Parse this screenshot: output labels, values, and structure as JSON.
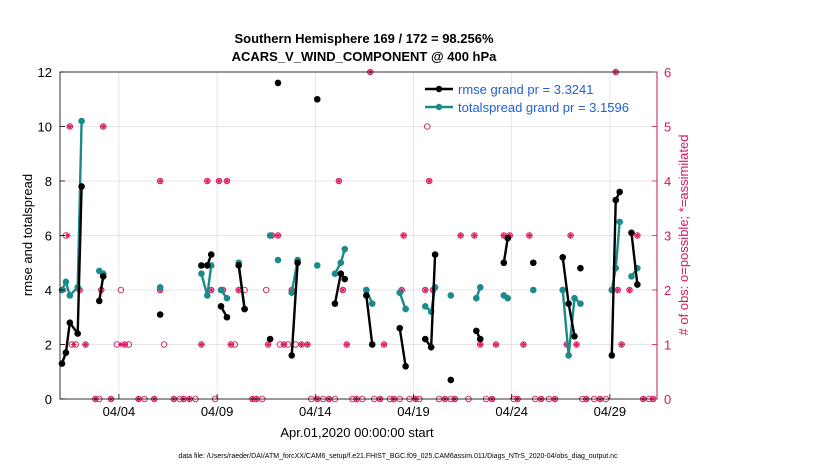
{
  "chart_data": {
    "type": "line",
    "title_line1": "Southern Hemisphere 169 / 172 = 98.256%",
    "title_line2": "ACARS_V_WIND_COMPONENT @ 400 hPa",
    "xlabel": "Apr.01,2020 00:00:00 start",
    "ylabel_left": "rmse and totalspread",
    "ylabel_right": "# of obs: o=possible; *=assimilated",
    "x_range_days": [
      1,
      31.4
    ],
    "x_ticks": [
      {
        "day": 4,
        "label": "04/04"
      },
      {
        "day": 9,
        "label": "04/09"
      },
      {
        "day": 14,
        "label": "04/14"
      },
      {
        "day": 19,
        "label": "04/19"
      },
      {
        "day": 24,
        "label": "04/24"
      },
      {
        "day": 29,
        "label": "04/29"
      }
    ],
    "ylim_left": [
      0,
      12
    ],
    "yticks_left": [
      "0",
      "2",
      "4",
      "6",
      "8",
      "10",
      "12"
    ],
    "ylim_right": [
      0,
      6
    ],
    "yticks_right": [
      "0",
      "1",
      "2",
      "3",
      "4",
      "5",
      "6"
    ],
    "grid": true,
    "legend_position": "top-right",
    "colors": {
      "rmse": "#000000",
      "spread": "#1a8a8a",
      "obs": "#d6175f",
      "legend_text": "#1f5fd6"
    },
    "series": [
      {
        "name": "rmse grand pr = 3.3241",
        "segments": [
          [
            [
              1.1,
              1.3
            ],
            [
              1.3,
              1.7
            ],
            [
              1.5,
              2.8
            ],
            [
              1.9,
              2.4
            ],
            [
              2.1,
              7.8
            ]
          ],
          [
            [
              3.0,
              3.6
            ],
            [
              3.2,
              4.5
            ]
          ],
          [
            [
              6.1,
              3.1
            ]
          ],
          [
            [
              8.2,
              4.9
            ],
            [
              8.5,
              4.9
            ],
            [
              8.7,
              5.3
            ]
          ],
          [
            [
              9.2,
              3.4
            ],
            [
              9.5,
              3.0
            ]
          ],
          [
            [
              10.1,
              4.9
            ],
            [
              10.4,
              3.3
            ]
          ],
          [
            [
              11.7,
              2.2
            ]
          ],
          [
            [
              12.1,
              11.6
            ]
          ],
          [
            [
              12.8,
              1.6
            ],
            [
              13.1,
              5.0
            ]
          ],
          [
            [
              14.1,
              11.0
            ]
          ],
          [
            [
              15.0,
              3.5
            ],
            [
              15.3,
              4.6
            ],
            [
              15.5,
              4.4
            ]
          ],
          [
            [
              16.6,
              3.8
            ],
            [
              16.9,
              2.0
            ]
          ],
          [
            [
              18.3,
              2.6
            ],
            [
              18.6,
              1.2
            ]
          ],
          [
            [
              19.6,
              2.2
            ],
            [
              19.9,
              1.9
            ],
            [
              20.1,
              5.3
            ]
          ],
          [
            [
              20.9,
              0.7
            ]
          ],
          [
            [
              22.2,
              2.5
            ],
            [
              22.4,
              2.2
            ]
          ],
          [
            [
              23.6,
              5.0
            ],
            [
              23.8,
              5.9
            ]
          ],
          [
            [
              25.1,
              5.0
            ]
          ],
          [
            [
              26.6,
              5.2
            ],
            [
              26.9,
              3.5
            ],
            [
              27.2,
              2.3
            ]
          ],
          [
            [
              27.5,
              4.8
            ]
          ],
          [
            [
              29.1,
              1.6
            ],
            [
              29.3,
              7.3
            ],
            [
              29.5,
              7.6
            ]
          ],
          [
            [
              30.1,
              6.1
            ],
            [
              30.4,
              4.2
            ]
          ]
        ]
      },
      {
        "name": "totalspread grand pr = 3.1596",
        "segments": [
          [
            [
              1.1,
              4.0
            ],
            [
              1.3,
              4.3
            ],
            [
              1.5,
              3.8
            ],
            [
              1.9,
              4.1
            ],
            [
              2.1,
              10.2
            ]
          ],
          [
            [
              3.0,
              4.7
            ],
            [
              3.2,
              4.6
            ]
          ],
          [
            [
              6.1,
              4.1
            ]
          ],
          [
            [
              8.2,
              4.6
            ],
            [
              8.5,
              3.8
            ],
            [
              8.7,
              4.9
            ]
          ],
          [
            [
              9.2,
              4.0
            ],
            [
              9.5,
              3.7
            ]
          ],
          [
            [
              10.1,
              5.0
            ],
            [
              10.4,
              3.3
            ]
          ],
          [
            [
              11.7,
              6.0
            ]
          ],
          [
            [
              12.1,
              5.1
            ]
          ],
          [
            [
              12.8,
              3.9
            ],
            [
              13.1,
              5.1
            ]
          ],
          [
            [
              14.1,
              4.9
            ]
          ],
          [
            [
              15.0,
              4.6
            ],
            [
              15.3,
              5.0
            ],
            [
              15.5,
              5.5
            ]
          ],
          [
            [
              16.6,
              4.0
            ],
            [
              16.9,
              3.5
            ]
          ],
          [
            [
              18.3,
              3.9
            ],
            [
              18.6,
              3.3
            ]
          ],
          [
            [
              19.6,
              3.4
            ],
            [
              19.9,
              3.2
            ],
            [
              20.1,
              4.1
            ]
          ],
          [
            [
              20.9,
              3.8
            ]
          ],
          [
            [
              22.2,
              3.7
            ],
            [
              22.4,
              4.1
            ]
          ],
          [
            [
              23.6,
              3.8
            ],
            [
              23.8,
              3.7
            ]
          ],
          [
            [
              25.1,
              4.0
            ]
          ],
          [
            [
              26.6,
              4.0
            ],
            [
              26.9,
              1.6
            ],
            [
              27.2,
              3.7
            ],
            [
              27.5,
              3.5
            ]
          ],
          [
            [
              29.1,
              4.0
            ],
            [
              29.3,
              4.8
            ],
            [
              29.5,
              6.5
            ]
          ],
          [
            [
              30.1,
              4.5
            ],
            [
              30.4,
              4.8
            ]
          ]
        ]
      }
    ],
    "obs_possible": [
      [
        1.1,
        2
      ],
      [
        1.3,
        3
      ],
      [
        1.5,
        5
      ],
      [
        1.6,
        1
      ],
      [
        1.8,
        1
      ],
      [
        2.0,
        2
      ],
      [
        2.3,
        1
      ],
      [
        2.8,
        0
      ],
      [
        3.0,
        0
      ],
      [
        3.1,
        2
      ],
      [
        3.2,
        5
      ],
      [
        3.6,
        0
      ],
      [
        3.9,
        1
      ],
      [
        4.1,
        2
      ],
      [
        4.3,
        1
      ],
      [
        4.5,
        1
      ],
      [
        5.0,
        0
      ],
      [
        5.3,
        0
      ],
      [
        5.8,
        0
      ],
      [
        6.1,
        4
      ],
      [
        6.1,
        2
      ],
      [
        6.3,
        1
      ],
      [
        6.8,
        0
      ],
      [
        7.1,
        0
      ],
      [
        7.3,
        0
      ],
      [
        7.6,
        0
      ],
      [
        7.9,
        0
      ],
      [
        8.2,
        1
      ],
      [
        8.5,
        4
      ],
      [
        8.7,
        2
      ],
      [
        8.9,
        0
      ],
      [
        9.1,
        4
      ],
      [
        9.3,
        2
      ],
      [
        9.5,
        4
      ],
      [
        9.7,
        1
      ],
      [
        9.9,
        1
      ],
      [
        10.1,
        2
      ],
      [
        10.4,
        2
      ],
      [
        10.8,
        0
      ],
      [
        11.0,
        0
      ],
      [
        11.3,
        0
      ],
      [
        11.5,
        2
      ],
      [
        11.6,
        1
      ],
      [
        11.8,
        3
      ],
      [
        12.1,
        3
      ],
      [
        12.2,
        1
      ],
      [
        12.4,
        1
      ],
      [
        12.6,
        1
      ],
      [
        12.8,
        2
      ],
      [
        13.0,
        1
      ],
      [
        13.3,
        1
      ],
      [
        13.6,
        1
      ],
      [
        13.8,
        0
      ],
      [
        14.1,
        0
      ],
      [
        14.4,
        0
      ],
      [
        14.7,
        0
      ],
      [
        15.0,
        0
      ],
      [
        15.2,
        4
      ],
      [
        15.4,
        2
      ],
      [
        15.6,
        1
      ],
      [
        15.9,
        0
      ],
      [
        16.1,
        0
      ],
      [
        16.4,
        0
      ],
      [
        16.6,
        2
      ],
      [
        16.8,
        6
      ],
      [
        17.0,
        0
      ],
      [
        17.3,
        0
      ],
      [
        17.5,
        1
      ],
      [
        17.8,
        0
      ],
      [
        18.0,
        0
      ],
      [
        18.3,
        0
      ],
      [
        18.4,
        2
      ],
      [
        18.5,
        3
      ],
      [
        18.8,
        0
      ],
      [
        19.1,
        0
      ],
      [
        19.3,
        0
      ],
      [
        19.6,
        2
      ],
      [
        19.7,
        5
      ],
      [
        19.8,
        4
      ],
      [
        20.0,
        2
      ],
      [
        20.3,
        0
      ],
      [
        20.6,
        0
      ],
      [
        20.9,
        0
      ],
      [
        21.1,
        0
      ],
      [
        21.4,
        3
      ],
      [
        21.8,
        0
      ],
      [
        22.1,
        3
      ],
      [
        22.4,
        1
      ],
      [
        22.7,
        0
      ],
      [
        23.0,
        0
      ],
      [
        23.2,
        1
      ],
      [
        23.6,
        3
      ],
      [
        23.9,
        3
      ],
      [
        24.1,
        0
      ],
      [
        24.3,
        0
      ],
      [
        24.6,
        1
      ],
      [
        24.9,
        3
      ],
      [
        25.2,
        0
      ],
      [
        25.5,
        0
      ],
      [
        25.9,
        0
      ],
      [
        26.2,
        0
      ],
      [
        26.6,
        2
      ],
      [
        26.8,
        1
      ],
      [
        27.0,
        3
      ],
      [
        27.3,
        1
      ],
      [
        27.6,
        0
      ],
      [
        27.8,
        0
      ],
      [
        28.2,
        0
      ],
      [
        28.5,
        0
      ],
      [
        28.8,
        0
      ],
      [
        29.1,
        2
      ],
      [
        29.3,
        6
      ],
      [
        29.4,
        2
      ],
      [
        29.6,
        1
      ],
      [
        30.0,
        2
      ],
      [
        30.4,
        3
      ],
      [
        30.7,
        0
      ],
      [
        31.0,
        0
      ],
      [
        31.2,
        0
      ]
    ],
    "obs_assimilated": [
      [
        1.2,
        2
      ],
      [
        1.4,
        3
      ],
      [
        1.5,
        5
      ],
      [
        1.7,
        1
      ],
      [
        2.0,
        2
      ],
      [
        2.3,
        1
      ],
      [
        2.8,
        0
      ],
      [
        3.1,
        2
      ],
      [
        3.2,
        5
      ],
      [
        3.6,
        0
      ],
      [
        4.1,
        1
      ],
      [
        4.3,
        1
      ],
      [
        5.0,
        0
      ],
      [
        5.8,
        0
      ],
      [
        6.1,
        4
      ],
      [
        6.1,
        2
      ],
      [
        6.8,
        0
      ],
      [
        7.3,
        0
      ],
      [
        7.6,
        0
      ],
      [
        8.2,
        1
      ],
      [
        8.5,
        4
      ],
      [
        8.7,
        2
      ],
      [
        9.1,
        4
      ],
      [
        9.3,
        2
      ],
      [
        9.5,
        4
      ],
      [
        9.7,
        1
      ],
      [
        10.1,
        2
      ],
      [
        10.8,
        0
      ],
      [
        11.0,
        0
      ],
      [
        11.6,
        1
      ],
      [
        11.8,
        3
      ],
      [
        12.1,
        3
      ],
      [
        12.4,
        1
      ],
      [
        12.8,
        2
      ],
      [
        13.3,
        1
      ],
      [
        13.6,
        1
      ],
      [
        14.1,
        0
      ],
      [
        14.7,
        0
      ],
      [
        15.2,
        4
      ],
      [
        15.4,
        2
      ],
      [
        15.6,
        1
      ],
      [
        16.1,
        0
      ],
      [
        16.6,
        2
      ],
      [
        16.8,
        6
      ],
      [
        17.3,
        0
      ],
      [
        17.5,
        1
      ],
      [
        18.0,
        0
      ],
      [
        18.4,
        2
      ],
      [
        18.5,
        3
      ],
      [
        19.1,
        0
      ],
      [
        19.6,
        2
      ],
      [
        19.8,
        4
      ],
      [
        20.0,
        2
      ],
      [
        20.6,
        0
      ],
      [
        21.1,
        0
      ],
      [
        21.4,
        3
      ],
      [
        22.1,
        3
      ],
      [
        22.4,
        1
      ],
      [
        23.0,
        0
      ],
      [
        23.2,
        1
      ],
      [
        23.6,
        3
      ],
      [
        23.9,
        3
      ],
      [
        24.3,
        0
      ],
      [
        24.6,
        1
      ],
      [
        24.9,
        3
      ],
      [
        25.5,
        0
      ],
      [
        26.2,
        0
      ],
      [
        26.6,
        2
      ],
      [
        26.8,
        1
      ],
      [
        27.0,
        3
      ],
      [
        27.3,
        1
      ],
      [
        27.8,
        0
      ],
      [
        28.5,
        0
      ],
      [
        29.1,
        2
      ],
      [
        29.3,
        6
      ],
      [
        29.4,
        2
      ],
      [
        29.6,
        1
      ],
      [
        30.0,
        2
      ],
      [
        30.4,
        3
      ],
      [
        30.7,
        0
      ],
      [
        31.2,
        0
      ]
    ],
    "legend": [
      "rmse grand pr = 3.3241",
      "totalspread grand pr = 3.1596"
    ]
  },
  "footer": "data file: /Users/raeder/DAI/ATM_forcXX/CAM6_setup/f.e21.FHIST_BGC.f09_025.CAM6assim.011/Diags_NTrS_2020-04/obs_diag_output.nc"
}
